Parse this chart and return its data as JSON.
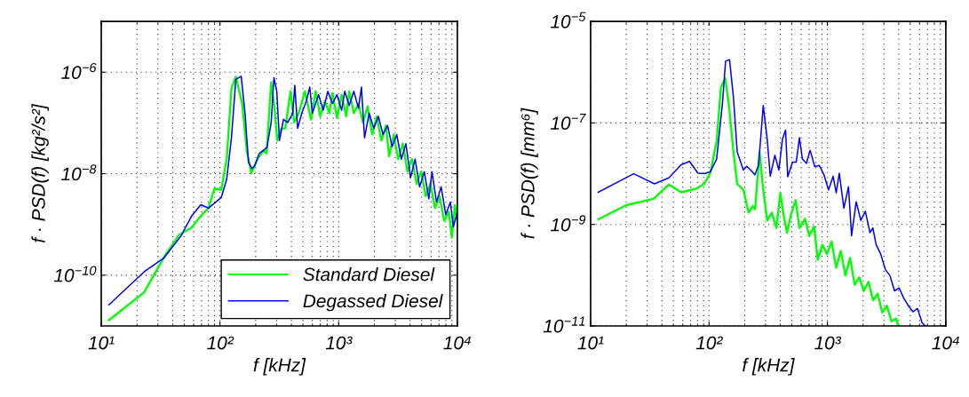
{
  "chart_data": [
    {
      "type": "line",
      "xlabel": "f [kHz]",
      "ylabel": "f · PSD(f) [kg²/s²]",
      "log": "xy",
      "grid": true,
      "legend": "bottom right",
      "line_style": "solid",
      "marker": "none",
      "xlim": [
        10,
        10000
      ],
      "ylim": [
        1e-11,
        1e-05
      ],
      "xticks": [
        {
          "value": 10,
          "label": "10¹"
        },
        {
          "value": 100,
          "label": "10²"
        },
        {
          "value": 1000,
          "label": "10³"
        },
        {
          "value": 10000,
          "label": "10⁴"
        }
      ],
      "yticks": [
        {
          "value": 1e-10,
          "label": "10$^{−10}$"
        },
        {
          "value": 1e-08,
          "label": "10$^{−8}$"
        },
        {
          "value": 1e-06,
          "label": "10$^{−6}$"
        }
      ],
      "series": [
        {
          "name": "Standard Diesel",
          "color": "#00ff00",
          "x": [
            11.6,
            23,
            34.8,
            45.5,
            57.7,
            68.9,
            80,
            90,
            102.6,
            114,
            125,
            136,
            154,
            168,
            184,
            207,
            233,
            247,
            270,
            287,
            304,
            329,
            355,
            393,
            422,
            461,
            519,
            585,
            640,
            699,
            764,
            835,
            886,
            968,
            1059,
            1157,
            1227,
            1342,
            1468,
            1604,
            1753,
            1917,
            2094,
            2290,
            2504,
            2660,
            2905,
            3177,
            3474,
            3796,
            4150,
            4539,
            4960,
            5420,
            5930,
            6480,
            7080,
            7740,
            8470,
            8990,
            9530,
            10000
          ],
          "values": [
            1.3e-11,
            4.6e-11,
            2.55e-10,
            6.3e-10,
            8.7e-10,
            1.46e-09,
            2.1e-09,
            5.1e-09,
            4.8e-09,
            1.93e-08,
            4.8e-07,
            8.1e-07,
            2.4e-07,
            2.9e-08,
            1.02e-08,
            1.93e-08,
            2.9e-08,
            2.5e-08,
            6.3e-07,
            2.1e-07,
            4.5e-08,
            7.8e-08,
            7.8e-08,
            4.2e-07,
            1.02e-07,
            1.55e-07,
            4.2e-07,
            1.17e-07,
            4.2e-07,
            1.35e-07,
            2.7e-07,
            1.55e-07,
            3.9e-07,
            1.26e-07,
            3.6e-07,
            1.35e-07,
            4.2e-07,
            1.55e-07,
            2.4e-07,
            1.02e-07,
            2.1e-07,
            5.9e-08,
            1.35e-07,
            4.5e-08,
            8.9e-08,
            2.2e-08,
            5.9e-08,
            1.93e-08,
            3.9e-08,
            1.1e-08,
            1.93e-08,
            6.3e-09,
            1.1e-08,
            3.6e-09,
            6.3e-09,
            2.1e-09,
            3.6e-09,
            1.18e-09,
            1.78e-09,
            5.5e-10,
            2.4e-09,
            1.18e-09
          ]
        },
        {
          "name": "Degassed Diesel",
          "color": "#0000ff",
          "x": [
            11.6,
            23,
            33.8,
            46.9,
            57.7,
            68.9,
            80,
            102.6,
            114,
            125,
            136,
            151,
            163,
            174,
            186,
            197,
            214,
            233,
            249,
            270,
            285,
            301,
            317,
            343,
            372,
            410,
            427,
            451,
            489,
            534,
            571,
            600,
            677,
            741,
            810,
            886,
            968,
            1059,
            1125,
            1227,
            1342,
            1468,
            1556,
            1652,
            1806,
            1976,
            2160,
            2362,
            2582,
            2820,
            3084,
            3373,
            3685,
            4030,
            4405,
            4810,
            5260,
            5750,
            6110,
            6670,
            7300,
            7980,
            8730,
            9250,
            10000
          ],
          "values": [
            2.6e-11,
            1.17e-10,
            2.2e-10,
            5.9e-10,
            1.46e-09,
            2.45e-09,
            2.1e-09,
            3.4e-09,
            7.8e-09,
            5.1e-08,
            7.2e-07,
            8.3e-07,
            1.45e-07,
            1.66e-08,
            1.26e-08,
            1.45e-08,
            2.5e-08,
            2.9e-08,
            3.3e-08,
            1.02e-07,
            7.8e-07,
            4.2e-07,
            4.5e-08,
            1.18e-07,
            1.02e-07,
            1.55e-07,
            5.5e-07,
            7.8e-08,
            1.55e-07,
            2.7e-07,
            5.1e-07,
            1.55e-07,
            3.6e-07,
            1.78e-07,
            4.2e-07,
            2.4e-07,
            3.6e-07,
            1.78e-07,
            4.2e-07,
            2.2e-07,
            4.2e-07,
            1.95e-07,
            5.1e-07,
            5.1e-08,
            1.55e-07,
            7.8e-08,
            1.35e-07,
            5.9e-08,
            8.9e-08,
            3.4e-08,
            5.9e-08,
            1.93e-08,
            3.9e-08,
            8.3e-09,
            1.93e-08,
            5.5e-09,
            1.1e-08,
            3.2e-09,
            1.1e-08,
            2.75e-09,
            5.5e-09,
            1.55e-09,
            2.75e-09,
            8.9e-10,
            1.78e-09
          ]
        }
      ]
    },
    {
      "type": "line",
      "xlabel": "f [kHz]",
      "ylabel": "f · PSD(f) [mm⁶]",
      "log": "xy",
      "grid": true,
      "line_style": "solid",
      "marker": "none",
      "xlim": [
        10,
        10000
      ],
      "ylim": [
        1e-11,
        1e-05
      ],
      "xticks": [
        {
          "value": 10,
          "label": "10¹"
        },
        {
          "value": 100,
          "label": "10²"
        },
        {
          "value": 1000,
          "label": "10³"
        },
        {
          "value": 10000,
          "label": "10⁴"
        }
      ],
      "yticks": [
        {
          "value": 1e-11,
          "label": "10$^{−11}$"
        },
        {
          "value": 1e-09,
          "label": "10$^{−9}$"
        },
        {
          "value": 1e-07,
          "label": "10$^{−7}$"
        },
        {
          "value": 1e-05,
          "label": "10$^{−5}$"
        }
      ],
      "series": [
        {
          "color": "#00ff00",
          "x": [
            11.6,
            20,
            34,
            45.8,
            58.2,
            78.4,
            91,
            102.6,
            116,
            126,
            137,
            147,
            161,
            173,
            195,
            216,
            234,
            245,
            267,
            287,
            310,
            339,
            371,
            400,
            425,
            456,
            493,
            539,
            580,
            646,
            702,
            772,
            829,
            907,
            991,
            1084,
            1186,
            1297,
            1418,
            1552,
            1698,
            1857,
            2030,
            2220,
            2430,
            2655,
            2905,
            3177,
            3476,
            3802,
            3960
          ],
          "values": [
            1.26e-09,
            2.4e-09,
            3.2e-09,
            6.1e-09,
            4.3e-09,
            5.1e-09,
            6.3e-09,
            1.03e-08,
            4.4e-08,
            5e-07,
            7.6e-07,
            2.3e-07,
            2.6e-08,
            6.3e-09,
            4.8e-09,
            1.7e-09,
            2.3e-09,
            2e-09,
            2.7e-08,
            4.8e-09,
            1.2e-09,
            1.7e-09,
            8.5e-10,
            4.2e-09,
            1.6e-09,
            6.9e-10,
            1.6e-09,
            3e-09,
            8.5e-10,
            1.29e-09,
            6e-10,
            9.1e-10,
            2e-10,
            4e-10,
            2.6e-10,
            4.6e-10,
            1.4e-10,
            3e-10,
            9.8e-11,
            2.2e-10,
            6.5e-11,
            9.1e-11,
            4.9e-11,
            7.4e-11,
            3.2e-11,
            4.3e-11,
            1.85e-11,
            2.5e-11,
            1.23e-11,
            1.4e-11,
            1e-11
          ]
        },
        {
          "color": "#0000ff",
          "x": [
            11.6,
            23.1,
            34.6,
            45.8,
            58.2,
            68.4,
            80.7,
            92,
            102.6,
            116,
            130,
            138,
            149,
            161,
            173,
            195,
            208,
            225,
            244,
            262,
            287,
            310,
            329,
            360,
            389,
            417,
            443,
            462,
            508,
            545,
            580,
            615,
            665,
            714,
            781,
            854,
            935,
            1022,
            1117,
            1186,
            1259,
            1377,
            1506,
            1599,
            1750,
            1914,
            2090,
            2286,
            2420,
            2577,
            2818,
            3082,
            3372,
            3687,
            4036,
            4416,
            4831,
            5272,
            5768,
            6310,
            6700
          ],
          "values": [
            4.3e-09,
            1e-08,
            6.3e-09,
            8.3e-09,
            1.5e-08,
            1.74e-08,
            1.02e-08,
            1e-08,
            1.1e-08,
            1.94e-08,
            2.5e-07,
            1.65e-06,
            1.77e-06,
            3.1e-07,
            2.7e-08,
            1.18e-08,
            1.4e-08,
            1.18e-08,
            9.5e-09,
            1.47e-08,
            2.2e-07,
            4.8e-08,
            8.9e-09,
            2.3e-08,
            1.18e-08,
            4.8e-08,
            7.2e-08,
            8.7e-09,
            1.69e-08,
            1.69e-08,
            5.1e-08,
            1.95e-08,
            1.6e-08,
            2.9e-08,
            1.38e-08,
            1.45e-08,
            9.5e-09,
            4.8e-09,
            8.9e-09,
            4.2e-09,
            1.02e-08,
            2.1e-09,
            5.5e-09,
            6e-10,
            2.8e-09,
            1.2e-09,
            1.82e-09,
            6.9e-10,
            8.5e-10,
            4e-10,
            2.6e-10,
            1.3e-10,
            9.8e-11,
            4.9e-11,
            5.6e-11,
            3.5e-11,
            2.5e-11,
            1.9e-11,
            2.2e-11,
            1.15e-11,
            1e-11
          ]
        }
      ]
    }
  ]
}
